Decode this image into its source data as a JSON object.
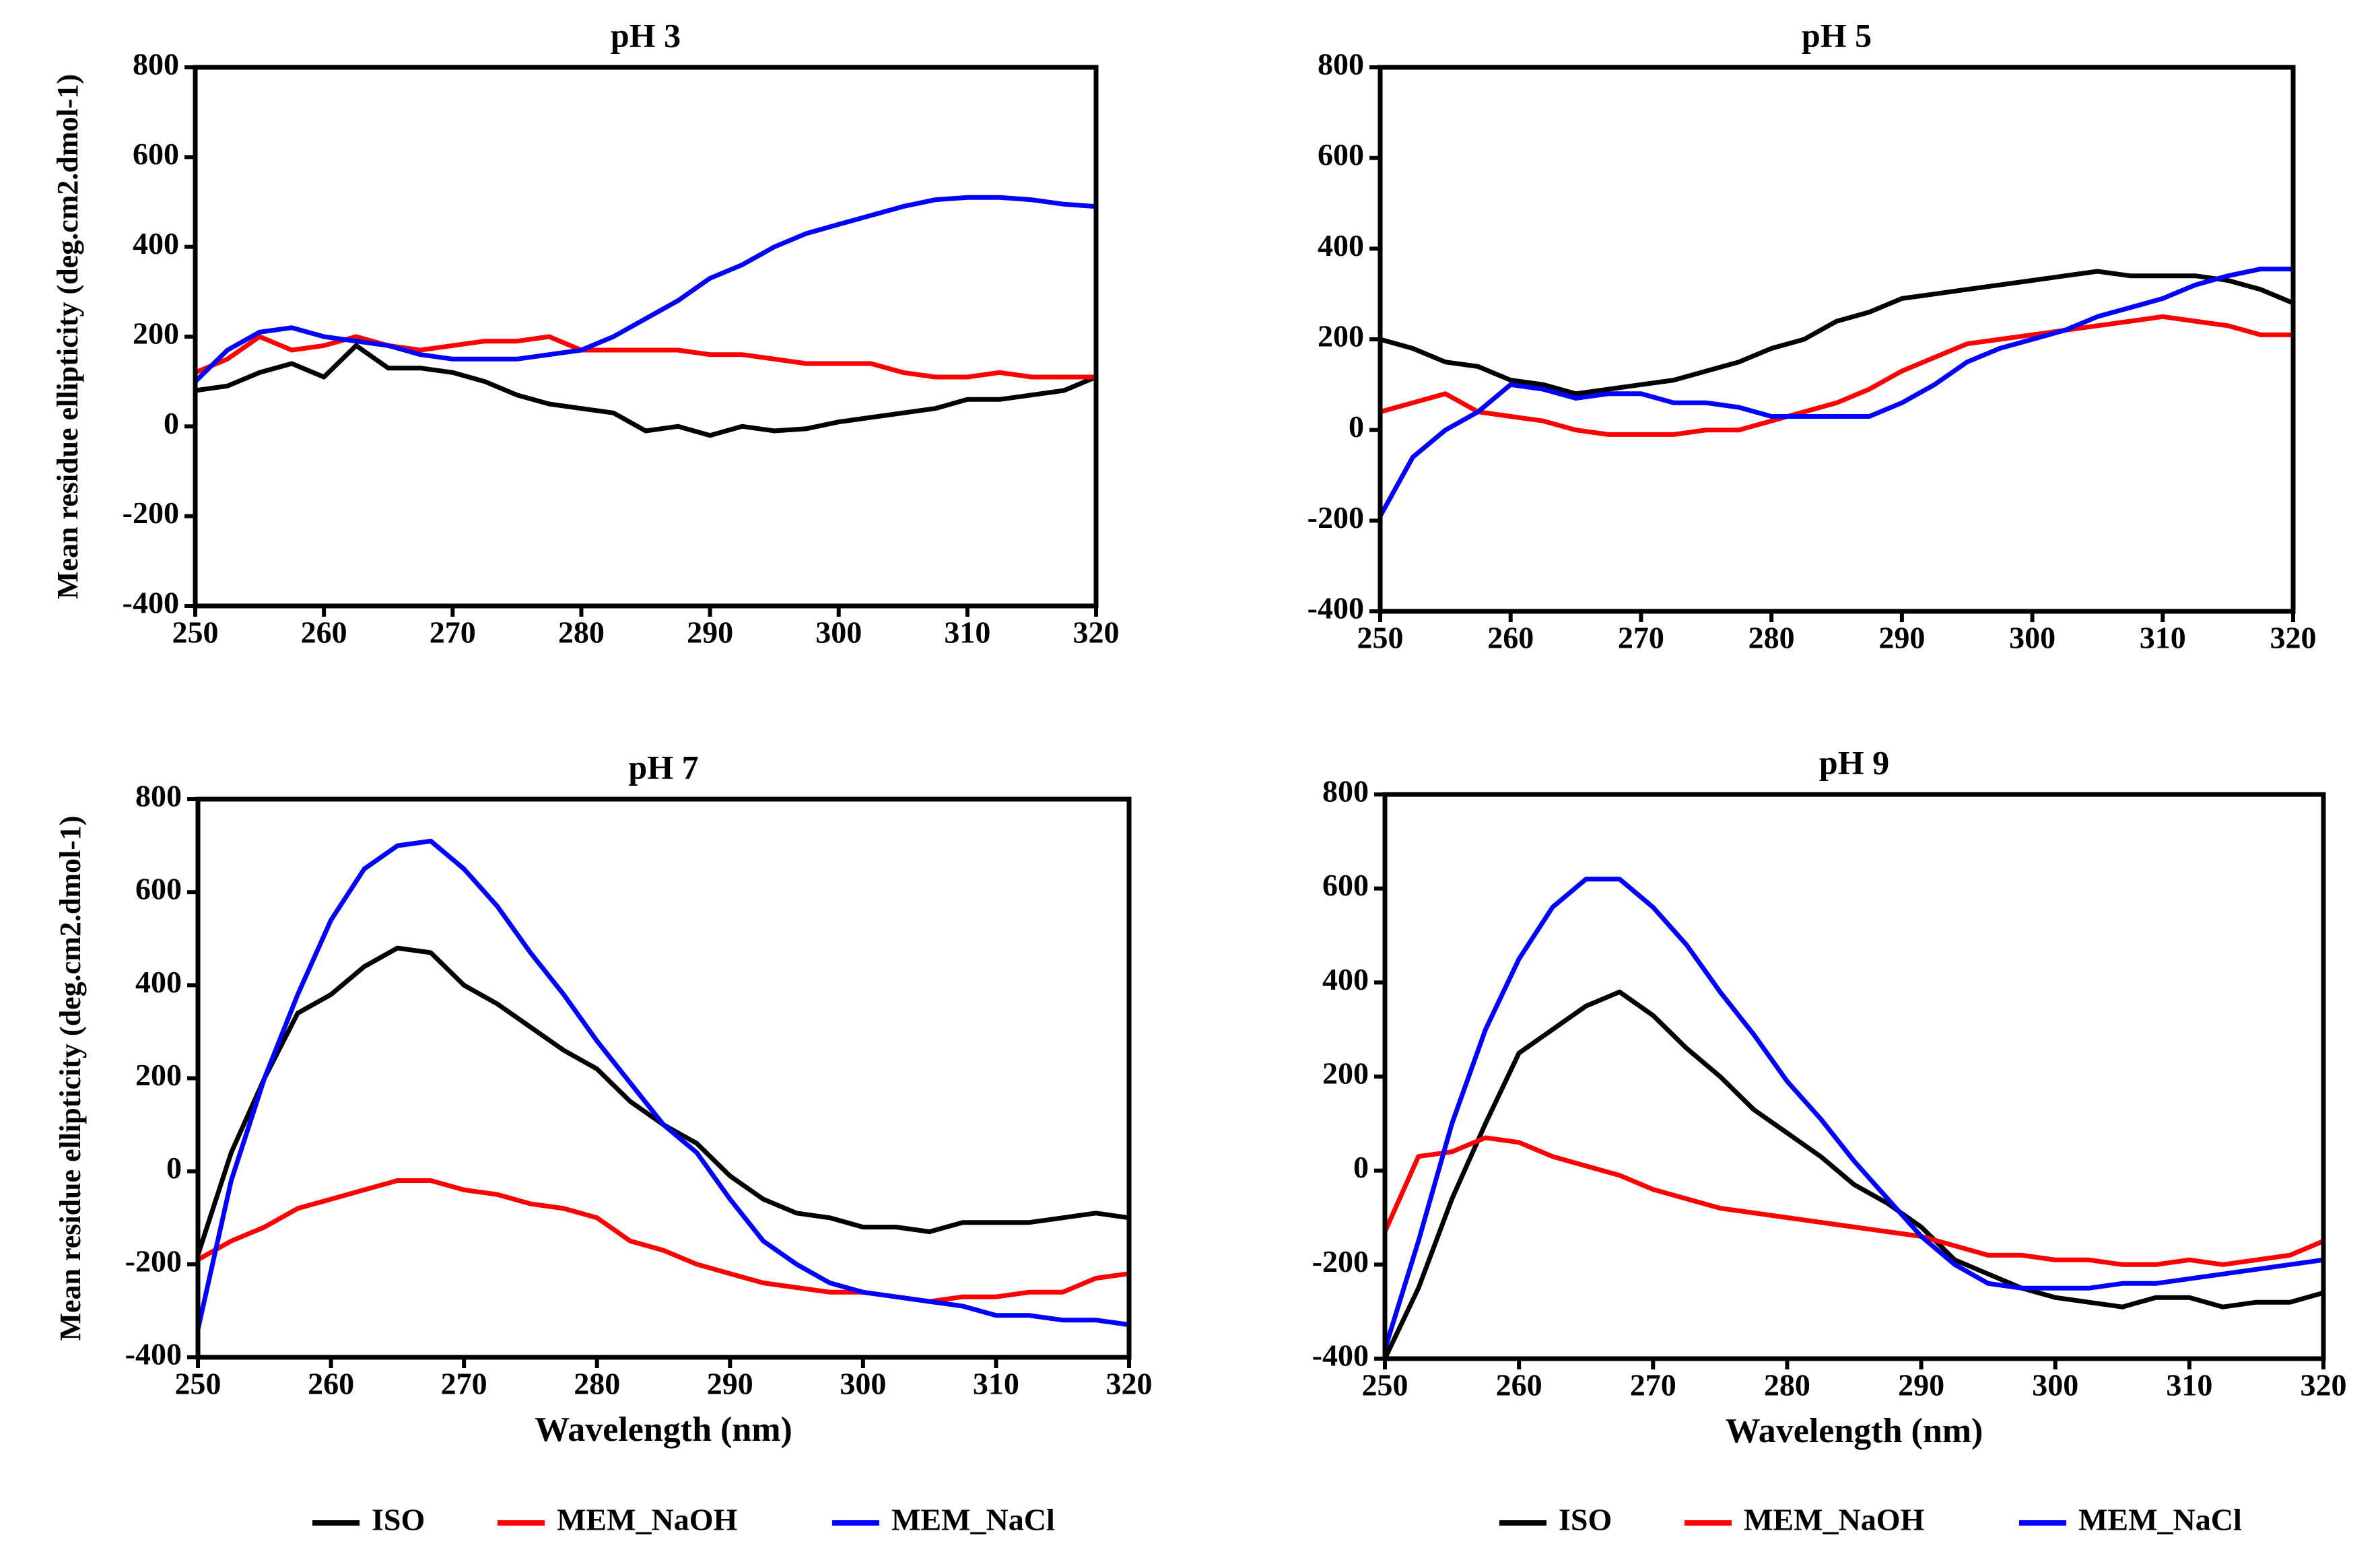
{
  "chart_data": [
    {
      "type": "line",
      "title": "pH 3",
      "ylabel": "Mean residue ellipticity (deg.cm2.dmol-1)",
      "x": [
        250,
        252.5,
        255,
        257.5,
        260,
        262.5,
        265,
        267.5,
        270,
        272.5,
        275,
        277.5,
        280,
        282.5,
        285,
        287.5,
        290,
        292.5,
        295,
        297.5,
        300,
        302.5,
        305,
        307.5,
        310,
        312.5,
        315,
        317.5,
        320
      ],
      "xlim": [
        250,
        320
      ],
      "xticks": [
        250,
        260,
        270,
        280,
        290,
        300,
        310,
        320
      ],
      "ylim": [
        -400,
        800
      ],
      "yticks": [
        -400,
        -200,
        0,
        200,
        400,
        600,
        800
      ],
      "series": [
        {
          "name": "ISO",
          "color": "#000000",
          "values": [
            80,
            90,
            120,
            140,
            110,
            180,
            130,
            130,
            120,
            100,
            70,
            50,
            40,
            30,
            -10,
            0,
            -20,
            0,
            -10,
            -5,
            10,
            20,
            30,
            40,
            60,
            60,
            70,
            80,
            110
          ]
        },
        {
          "name": "MEM_NaOH",
          "color": "#ff0000",
          "values": [
            120,
            150,
            200,
            170,
            180,
            200,
            180,
            170,
            180,
            190,
            190,
            200,
            170,
            170,
            170,
            170,
            160,
            160,
            150,
            140,
            140,
            140,
            120,
            110,
            110,
            120,
            110,
            110,
            110
          ]
        },
        {
          "name": "MEM_NaCl",
          "color": "#0000ff",
          "values": [
            100,
            170,
            210,
            220,
            200,
            190,
            180,
            160,
            150,
            150,
            150,
            160,
            170,
            200,
            240,
            280,
            330,
            360,
            400,
            430,
            450,
            470,
            490,
            505,
            510,
            510,
            505,
            495,
            490
          ]
        }
      ]
    },
    {
      "type": "line",
      "title": "pH 5",
      "x": [
        250,
        252.5,
        255,
        257.5,
        260,
        262.5,
        265,
        267.5,
        270,
        272.5,
        275,
        277.5,
        280,
        282.5,
        285,
        287.5,
        290,
        292.5,
        295,
        297.5,
        300,
        302.5,
        305,
        307.5,
        310,
        312.5,
        315,
        317.5,
        320
      ],
      "xlim": [
        250,
        320
      ],
      "xticks": [
        250,
        260,
        270,
        280,
        290,
        300,
        310,
        320
      ],
      "ylim": [
        -400,
        800
      ],
      "yticks": [
        -400,
        -200,
        0,
        200,
        400,
        600,
        800
      ],
      "series": [
        {
          "name": "ISO",
          "color": "#000000",
          "values": [
            200,
            180,
            150,
            140,
            110,
            100,
            80,
            90,
            100,
            110,
            130,
            150,
            180,
            200,
            240,
            260,
            290,
            300,
            310,
            320,
            330,
            340,
            350,
            340,
            340,
            340,
            330,
            310,
            280
          ]
        },
        {
          "name": "MEM_NaOH",
          "color": "#ff0000",
          "values": [
            40,
            60,
            80,
            40,
            30,
            20,
            0,
            -10,
            -10,
            -10,
            0,
            0,
            20,
            40,
            60,
            90,
            130,
            160,
            190,
            200,
            210,
            220,
            230,
            240,
            250,
            240,
            230,
            210,
            210
          ]
        },
        {
          "name": "MEM_NaCl",
          "color": "#0000ff",
          "values": [
            -190,
            -60,
            0,
            40,
            100,
            90,
            70,
            80,
            80,
            60,
            60,
            50,
            30,
            30,
            30,
            30,
            60,
            100,
            150,
            180,
            200,
            220,
            250,
            270,
            290,
            320,
            340,
            355,
            355
          ]
        }
      ]
    },
    {
      "type": "line",
      "title": "pH 7",
      "ylabel": "Mean residue ellipticity (deg.cm2.dmol-1)",
      "xlabel": "Wavelength (nm)",
      "legend": "bottom",
      "x": [
        250,
        252.5,
        255,
        257.5,
        260,
        262.5,
        265,
        267.5,
        270,
        272.5,
        275,
        277.5,
        280,
        282.5,
        285,
        287.5,
        290,
        292.5,
        295,
        297.5,
        300,
        302.5,
        305,
        307.5,
        310,
        312.5,
        315,
        317.5,
        320
      ],
      "xlim": [
        250,
        320
      ],
      "xticks": [
        250,
        260,
        270,
        280,
        290,
        300,
        310,
        320
      ],
      "ylim": [
        -400,
        800
      ],
      "yticks": [
        -400,
        -200,
        0,
        200,
        400,
        600,
        800
      ],
      "series": [
        {
          "name": "ISO",
          "color": "#000000",
          "values": [
            -180,
            40,
            200,
            340,
            380,
            440,
            480,
            470,
            400,
            360,
            310,
            260,
            220,
            150,
            100,
            60,
            -10,
            -60,
            -90,
            -100,
            -120,
            -120,
            -130,
            -110,
            -110,
            -110,
            -100,
            -90,
            -100
          ]
        },
        {
          "name": "MEM_NaOH",
          "color": "#ff0000",
          "values": [
            -190,
            -150,
            -120,
            -80,
            -60,
            -40,
            -20,
            -20,
            -40,
            -50,
            -70,
            -80,
            -100,
            -150,
            -170,
            -200,
            -220,
            -240,
            -250,
            -260,
            -260,
            -270,
            -280,
            -270,
            -270,
            -260,
            -260,
            -230,
            -220
          ]
        },
        {
          "name": "MEM_NaCl",
          "color": "#0000ff",
          "values": [
            -340,
            -20,
            200,
            380,
            540,
            650,
            700,
            710,
            650,
            570,
            470,
            380,
            280,
            190,
            100,
            40,
            -60,
            -150,
            -200,
            -240,
            -260,
            -270,
            -280,
            -290,
            -310,
            -310,
            -320,
            -320,
            -330
          ]
        }
      ]
    },
    {
      "type": "line",
      "title": "pH 9",
      "xlabel": "Wavelength (nm)",
      "legend": "bottom",
      "x": [
        250,
        252.5,
        255,
        257.5,
        260,
        262.5,
        265,
        267.5,
        270,
        272.5,
        275,
        277.5,
        280,
        282.5,
        285,
        287.5,
        290,
        292.5,
        295,
        297.5,
        300,
        302.5,
        305,
        307.5,
        310,
        312.5,
        315,
        317.5,
        320
      ],
      "xlim": [
        250,
        320
      ],
      "xticks": [
        250,
        260,
        270,
        280,
        290,
        300,
        310,
        320
      ],
      "ylim": [
        -400,
        800
      ],
      "yticks": [
        -400,
        -200,
        0,
        200,
        400,
        600,
        800
      ],
      "series": [
        {
          "name": "ISO",
          "color": "#000000",
          "values": [
            -400,
            -250,
            -60,
            100,
            250,
            300,
            350,
            380,
            330,
            260,
            200,
            130,
            80,
            30,
            -30,
            -70,
            -120,
            -190,
            -220,
            -250,
            -270,
            -280,
            -290,
            -270,
            -270,
            -290,
            -280,
            -280,
            -260
          ]
        },
        {
          "name": "MEM_NaOH",
          "color": "#ff0000",
          "values": [
            -130,
            30,
            40,
            70,
            60,
            30,
            10,
            -10,
            -40,
            -60,
            -80,
            -90,
            -100,
            -110,
            -120,
            -130,
            -140,
            -160,
            -180,
            -180,
            -190,
            -190,
            -200,
            -200,
            -190,
            -200,
            -190,
            -180,
            -150
          ]
        },
        {
          "name": "MEM_NaCl",
          "color": "#0000ff",
          "values": [
            -380,
            -150,
            100,
            300,
            450,
            560,
            620,
            620,
            560,
            480,
            380,
            290,
            190,
            110,
            20,
            -60,
            -140,
            -200,
            -240,
            -250,
            -250,
            -250,
            -240,
            -240,
            -230,
            -220,
            -210,
            -200,
            -190
          ]
        }
      ]
    }
  ]
}
